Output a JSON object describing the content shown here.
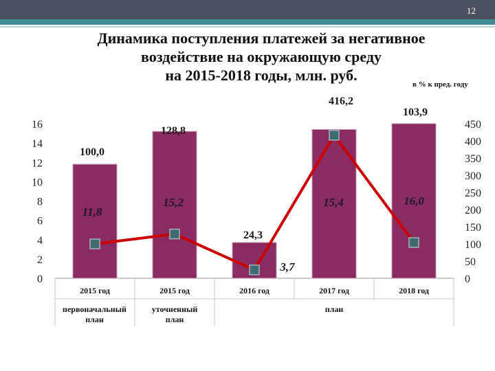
{
  "page": {
    "number": "12",
    "title_lines": [
      "Динамика поступления платежей за негативное",
      "воздействие на окружающую среду",
      "на 2015-2018 годы, млн. руб."
    ],
    "right_axis_note": "в % к пред. году"
  },
  "colors": {
    "bar_fill": "#8b2b63",
    "line": "#cc0000",
    "marker": "#3f6b73",
    "header": "#4b5160",
    "stripe": "#3d8d96"
  },
  "chart_data": {
    "type": "bar",
    "categories": [
      "2015 год",
      "2015 год",
      "2016 год",
      "2017 год",
      "2018 год"
    ],
    "series": [
      {
        "values": [
          11.8,
          15.2,
          3.7,
          15.4,
          16.0
        ],
        "value_labels": [
          "11,8",
          "15,2",
          "3,7",
          "15,4",
          "16,0"
        ],
        "axis": "left"
      },
      {
        "type": "line",
        "values": [
          100.0,
          128.8,
          24.3,
          416.2,
          103.9
        ],
        "value_labels": [
          "100,0",
          "128,8",
          "24,3",
          "416,2",
          "103,9"
        ],
        "axis": "right"
      }
    ],
    "left_axis": {
      "ylim": [
        0,
        16
      ],
      "ticks": [
        "0",
        "2",
        "4",
        "6",
        "8",
        "10",
        "12",
        "14",
        "16"
      ]
    },
    "right_axis": {
      "ylim": [
        0,
        450
      ],
      "ticks": [
        "0",
        "50",
        "100",
        "150",
        "200",
        "250",
        "300",
        "350",
        "400",
        "450"
      ]
    },
    "groups": [
      {
        "label_lines": [
          "первоначальный",
          "план"
        ]
      },
      {
        "label_lines": [
          "уточненный",
          "план"
        ]
      },
      {
        "label_lines": [
          "план"
        ]
      }
    ]
  }
}
